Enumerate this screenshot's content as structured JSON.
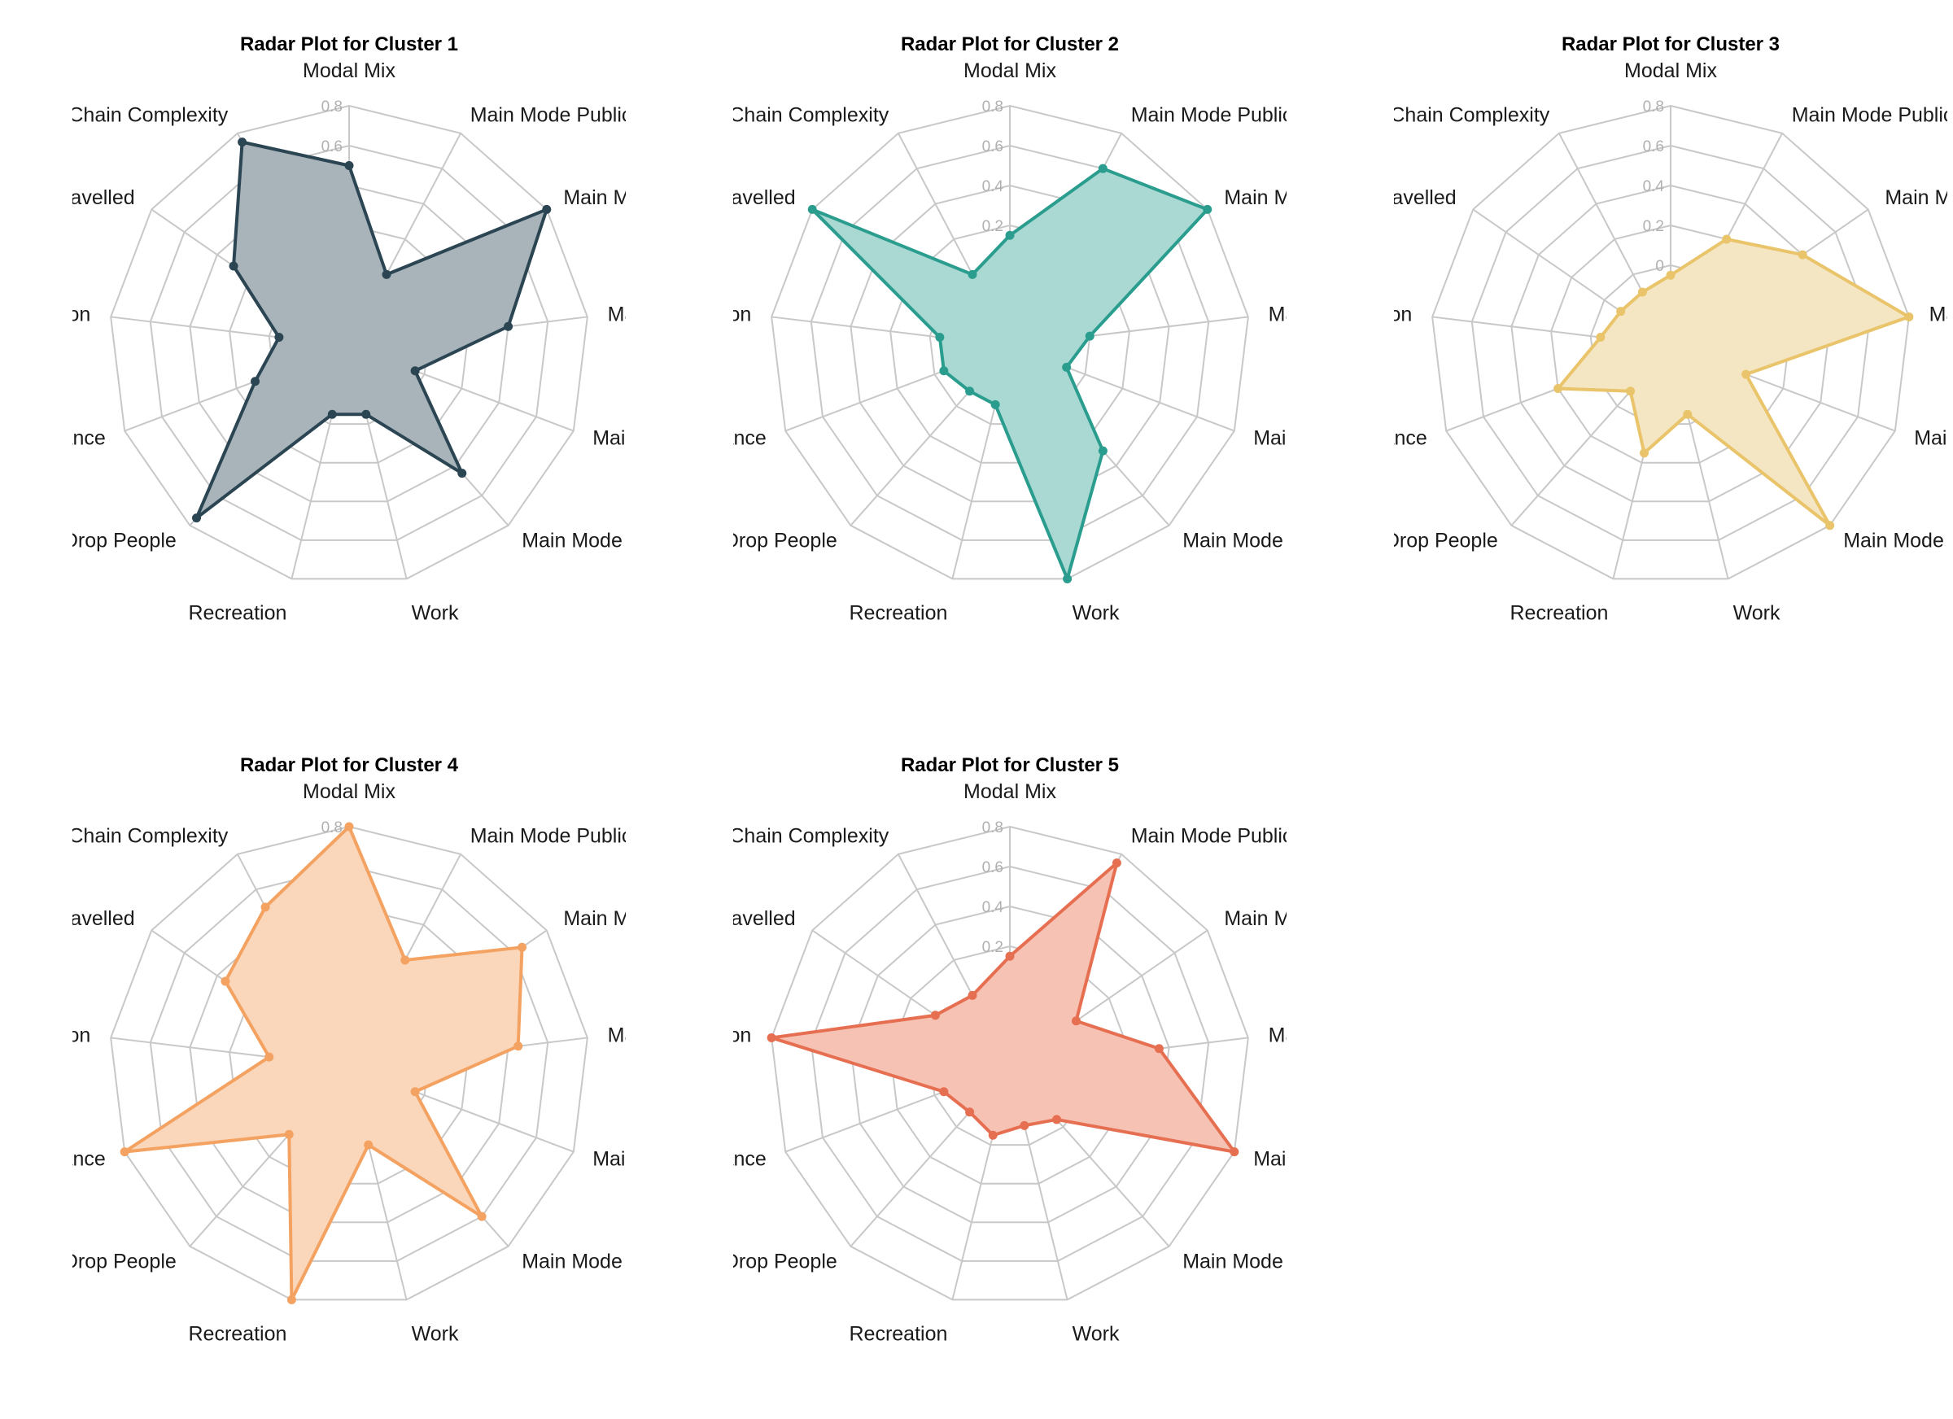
{
  "figure": {
    "axes": [
      "Modal Mix",
      "Main Mode Public Transport",
      "Main Mode Passeng",
      "Main Mode c",
      "Main Mode Non Ele",
      "Main Mode Electric Bike",
      "Work",
      "Recreation",
      "Pick Drop People",
      "aintenance",
      "lucation",
      "stance Travelled",
      "Chain Complexity"
    ],
    "ticks": [
      "0",
      "0.2",
      "0.4",
      "0.6",
      "0.8"
    ]
  },
  "chart_data": [
    {
      "type": "radar",
      "title": "Radar Plot for Cluster 1",
      "color": "#2b4553",
      "fill": "#a8b3ba",
      "rlim": [
        -0.2,
        0.8
      ],
      "values": [
        0.5,
        0.0,
        0.8,
        0.4,
        -0.05,
        0.45,
        -0.05,
        -0.05,
        0.75,
        0.1,
        -0.05,
        0.3,
        0.75
      ]
    },
    {
      "type": "radar",
      "title": "Radar Plot for Cluster 2",
      "color": "#2a9d8f",
      "fill": "#a9d9d2",
      "rlim": [
        -0.2,
        0.8
      ],
      "values": [
        0.15,
        0.6,
        0.8,
        0.0,
        -0.1,
        0.3,
        0.8,
        -0.1,
        -0.1,
        -0.05,
        -0.05,
        0.8,
        0.0
      ]
    },
    {
      "type": "radar",
      "title": "Radar Plot for Cluster 3",
      "color": "#e9c46a",
      "fill": "#f5e6c3",
      "rlim": [
        -0.2,
        0.8
      ],
      "values": [
        -0.05,
        0.2,
        0.4,
        0.8,
        0.0,
        0.8,
        -0.05,
        0.15,
        -0.1,
        0.2,
        -0.05,
        -0.1,
        -0.1
      ]
    },
    {
      "type": "radar",
      "title": "Radar Plot for Cluster 4",
      "color": "#f4a261",
      "fill": "#fad6ba",
      "rlim": [
        -0.2,
        0.8
      ],
      "values": [
        0.8,
        0.2,
        0.65,
        0.45,
        -0.05,
        0.6,
        0.0,
        0.8,
        0.05,
        0.8,
        0.0,
        0.35,
        0.5
      ]
    },
    {
      "type": "radar",
      "title": "Radar Plot for Cluster 5",
      "color": "#e76f51",
      "fill": "#f5c2b4",
      "rlim": [
        -0.2,
        0.8
      ],
      "values": [
        0.15,
        0.75,
        0.0,
        0.35,
        0.8,
        -0.05,
        -0.1,
        -0.05,
        -0.1,
        -0.05,
        0.8,
        0.05,
        0.0
      ]
    }
  ]
}
